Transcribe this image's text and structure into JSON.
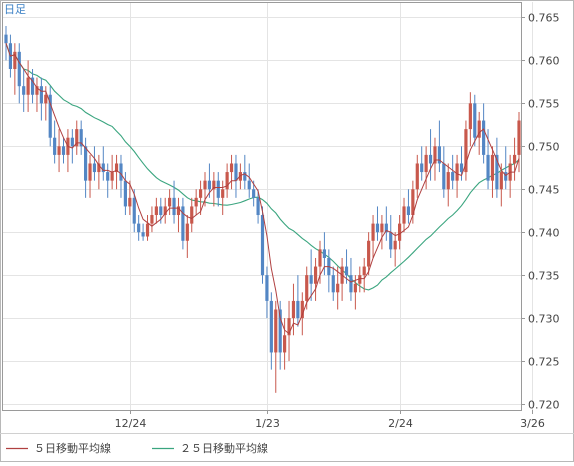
{
  "colors": {
    "bull": "#c8584c",
    "bear": "#5386c4",
    "ma5": "#b04040",
    "ma25": "#3aa57f",
    "grid": "#e4e4e4",
    "axis": "#9a9a9a"
  },
  "chart_data": {
    "type": "candlestick",
    "timeframe_label": "日足",
    "yticks": [
      "0.765",
      "0.760",
      "0.755",
      "0.750",
      "0.745",
      "0.740",
      "0.735",
      "0.730",
      "0.725",
      "0.720"
    ],
    "ylim": [
      0.7193,
      0.7668
    ],
    "xticks": [
      {
        "label": "12/24",
        "index": 28
      },
      {
        "label": "1/23",
        "index": 59
      },
      {
        "label": "2/24",
        "index": 89
      },
      {
        "label": "3/26",
        "index": 119
      }
    ],
    "legend": [
      {
        "label": "５日移動平均線",
        "color": "#b04040"
      },
      {
        "label": "２５日移動平均線",
        "color": "#3aa57f"
      }
    ],
    "candles": [
      [
        0.763,
        0.764,
        0.76,
        0.762
      ],
      [
        0.762,
        0.763,
        0.758,
        0.759
      ],
      [
        0.759,
        0.762,
        0.756,
        0.761
      ],
      [
        0.761,
        0.762,
        0.755,
        0.757
      ],
      [
        0.757,
        0.759,
        0.754,
        0.756
      ],
      [
        0.756,
        0.76,
        0.754,
        0.758
      ],
      [
        0.758,
        0.759,
        0.755,
        0.756
      ],
      [
        0.756,
        0.758,
        0.754,
        0.757
      ],
      [
        0.757,
        0.758,
        0.753,
        0.755
      ],
      [
        0.755,
        0.757,
        0.753,
        0.756
      ],
      [
        0.756,
        0.757,
        0.75,
        0.751
      ],
      [
        0.751,
        0.753,
        0.748,
        0.749
      ],
      [
        0.749,
        0.752,
        0.747,
        0.75
      ],
      [
        0.75,
        0.751,
        0.748,
        0.749
      ],
      [
        0.749,
        0.752,
        0.747,
        0.751
      ],
      [
        0.751,
        0.752,
        0.748,
        0.75
      ],
      [
        0.75,
        0.753,
        0.749,
        0.752
      ],
      [
        0.752,
        0.753,
        0.749,
        0.75
      ],
      [
        0.75,
        0.751,
        0.744,
        0.746
      ],
      [
        0.746,
        0.749,
        0.744,
        0.748
      ],
      [
        0.748,
        0.75,
        0.746,
        0.747
      ],
      [
        0.747,
        0.749,
        0.745,
        0.748
      ],
      [
        0.748,
        0.75,
        0.746,
        0.747
      ],
      [
        0.747,
        0.748,
        0.744,
        0.746
      ],
      [
        0.746,
        0.749,
        0.745,
        0.747
      ],
      [
        0.747,
        0.749,
        0.745,
        0.748
      ],
      [
        0.748,
        0.749,
        0.744,
        0.746
      ],
      [
        0.746,
        0.747,
        0.742,
        0.743
      ],
      [
        0.743,
        0.746,
        0.742,
        0.744
      ],
      [
        0.744,
        0.745,
        0.74,
        0.741
      ],
      [
        0.741,
        0.742,
        0.739,
        0.74
      ],
      [
        0.74,
        0.741,
        0.739,
        0.7395
      ],
      [
        0.7395,
        0.742,
        0.739,
        0.741
      ],
      [
        0.741,
        0.743,
        0.74,
        0.742
      ],
      [
        0.742,
        0.744,
        0.741,
        0.743
      ],
      [
        0.743,
        0.744,
        0.741,
        0.742
      ],
      [
        0.742,
        0.744,
        0.741,
        0.743
      ],
      [
        0.743,
        0.745,
        0.742,
        0.744
      ],
      [
        0.744,
        0.746,
        0.741,
        0.742
      ],
      [
        0.742,
        0.744,
        0.74,
        0.743
      ],
      [
        0.743,
        0.744,
        0.738,
        0.739
      ],
      [
        0.739,
        0.742,
        0.737,
        0.741
      ],
      [
        0.741,
        0.744,
        0.74,
        0.743
      ],
      [
        0.743,
        0.745,
        0.742,
        0.744
      ],
      [
        0.744,
        0.746,
        0.742,
        0.745
      ],
      [
        0.745,
        0.747,
        0.743,
        0.746
      ],
      [
        0.746,
        0.748,
        0.744,
        0.745
      ],
      [
        0.745,
        0.747,
        0.743,
        0.746
      ],
      [
        0.746,
        0.747,
        0.743,
        0.744
      ],
      [
        0.744,
        0.746,
        0.742,
        0.745
      ],
      [
        0.745,
        0.748,
        0.744,
        0.747
      ],
      [
        0.747,
        0.749,
        0.745,
        0.748
      ],
      [
        0.748,
        0.749,
        0.744,
        0.746
      ],
      [
        0.746,
        0.748,
        0.745,
        0.747
      ],
      [
        0.747,
        0.749,
        0.745,
        0.746
      ],
      [
        0.746,
        0.748,
        0.744,
        0.745
      ],
      [
        0.745,
        0.746,
        0.743,
        0.744
      ],
      [
        0.744,
        0.745,
        0.741,
        0.742
      ],
      [
        0.742,
        0.743,
        0.734,
        0.735
      ],
      [
        0.735,
        0.736,
        0.73,
        0.732
      ],
      [
        0.732,
        0.733,
        0.724,
        0.726
      ],
      [
        0.726,
        0.732,
        0.7213,
        0.731
      ],
      [
        0.731,
        0.732,
        0.724,
        0.726
      ],
      [
        0.726,
        0.73,
        0.724,
        0.728
      ],
      [
        0.728,
        0.732,
        0.725,
        0.73
      ],
      [
        0.73,
        0.734,
        0.728,
        0.732
      ],
      [
        0.732,
        0.735,
        0.729,
        0.73
      ],
      [
        0.73,
        0.733,
        0.728,
        0.732
      ],
      [
        0.732,
        0.736,
        0.731,
        0.735
      ],
      [
        0.735,
        0.738,
        0.732,
        0.734
      ],
      [
        0.734,
        0.737,
        0.732,
        0.736
      ],
      [
        0.736,
        0.739,
        0.734,
        0.738
      ],
      [
        0.738,
        0.74,
        0.735,
        0.737
      ],
      [
        0.737,
        0.738,
        0.733,
        0.735
      ],
      [
        0.735,
        0.736,
        0.732,
        0.733
      ],
      [
        0.733,
        0.736,
        0.731,
        0.734
      ],
      [
        0.734,
        0.737,
        0.732,
        0.736
      ],
      [
        0.736,
        0.738,
        0.734,
        0.735
      ],
      [
        0.735,
        0.737,
        0.732,
        0.733
      ],
      [
        0.733,
        0.735,
        0.731,
        0.734
      ],
      [
        0.734,
        0.736,
        0.733,
        0.735
      ],
      [
        0.735,
        0.737,
        0.733,
        0.736
      ],
      [
        0.736,
        0.74,
        0.735,
        0.739
      ],
      [
        0.739,
        0.742,
        0.737,
        0.741
      ],
      [
        0.741,
        0.743,
        0.739,
        0.74
      ],
      [
        0.74,
        0.742,
        0.738,
        0.741
      ],
      [
        0.741,
        0.743,
        0.739,
        0.74
      ],
      [
        0.74,
        0.742,
        0.737,
        0.738
      ],
      [
        0.738,
        0.74,
        0.736,
        0.739
      ],
      [
        0.739,
        0.742,
        0.738,
        0.741
      ],
      [
        0.741,
        0.744,
        0.74,
        0.743
      ],
      [
        0.743,
        0.745,
        0.741,
        0.742
      ],
      [
        0.742,
        0.746,
        0.741,
        0.745
      ],
      [
        0.745,
        0.749,
        0.744,
        0.748
      ],
      [
        0.748,
        0.75,
        0.746,
        0.747
      ],
      [
        0.747,
        0.75,
        0.745,
        0.749
      ],
      [
        0.749,
        0.752,
        0.746,
        0.748
      ],
      [
        0.748,
        0.751,
        0.746,
        0.75
      ],
      [
        0.75,
        0.753,
        0.747,
        0.748
      ],
      [
        0.748,
        0.75,
        0.744,
        0.745
      ],
      [
        0.745,
        0.748,
        0.743,
        0.747
      ],
      [
        0.747,
        0.749,
        0.745,
        0.746
      ],
      [
        0.746,
        0.749,
        0.744,
        0.748
      ],
      [
        0.748,
        0.75,
        0.746,
        0.747
      ],
      [
        0.747,
        0.753,
        0.746,
        0.752
      ],
      [
        0.752,
        0.7563,
        0.75,
        0.755
      ],
      [
        0.755,
        0.756,
        0.75,
        0.751
      ],
      [
        0.751,
        0.754,
        0.749,
        0.753
      ],
      [
        0.753,
        0.755,
        0.748,
        0.749
      ],
      [
        0.749,
        0.752,
        0.745,
        0.746
      ],
      [
        0.746,
        0.75,
        0.744,
        0.749
      ],
      [
        0.749,
        0.751,
        0.744,
        0.745
      ],
      [
        0.745,
        0.748,
        0.743,
        0.747
      ],
      [
        0.747,
        0.75,
        0.745,
        0.746
      ],
      [
        0.746,
        0.749,
        0.744,
        0.748
      ],
      [
        0.748,
        0.751,
        0.746,
        0.749
      ],
      [
        0.749,
        0.754,
        0.747,
        0.753
      ]
    ]
  }
}
